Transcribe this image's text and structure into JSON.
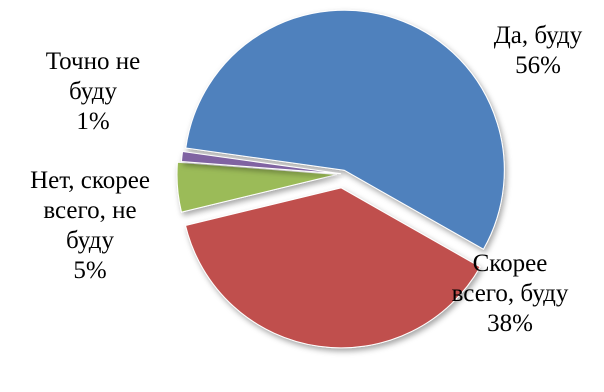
{
  "chart_data": {
    "type": "pie",
    "title": "",
    "slices": [
      {
        "label": [
          "Да, буду",
          "56%"
        ],
        "value": 56,
        "color": "#4F81BD"
      },
      {
        "label": [
          "Скорее",
          "всего, буду",
          "38%"
        ],
        "value": 38,
        "color": "#C0504D"
      },
      {
        "label": [
          "Нет, скорее",
          "всего, не",
          "буду",
          "5%"
        ],
        "value": 5,
        "color": "#9BBB59"
      },
      {
        "label": [
          "Точно не",
          "буду",
          "1%"
        ],
        "value": 1,
        "color": "#8064A2"
      }
    ],
    "legend": "none",
    "exploded": true
  }
}
